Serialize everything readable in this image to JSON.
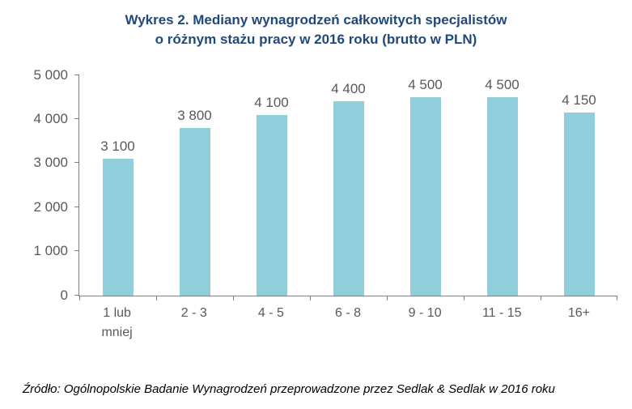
{
  "title": {
    "line1": "Wykres 2. Mediany wynagrodzeń całkowitych specjalistów",
    "line2": "o różnym stażu pracy w 2016 roku (brutto w PLN)"
  },
  "source": "Źródło: Ogólnopolskie Badanie Wynagrodzeń przeprowadzone przez Sedlak & Sedlak w 2016 roku",
  "chart_data": {
    "type": "bar",
    "title": "Wykres 2. Mediany wynagrodzeń całkowitych specjalistów o różnym stażu pracy w 2016 roku (brutto w PLN)",
    "categories": [
      "1 lub\nmniej",
      "2 - 3",
      "4 - 5",
      "6 - 8",
      "9 - 10",
      "11 - 15",
      "16+"
    ],
    "values": [
      3100,
      3800,
      4100,
      4400,
      4500,
      4500,
      4150
    ],
    "value_labels": [
      "3 100",
      "3 800",
      "4 100",
      "4 400",
      "4 500",
      "4 500",
      "4 150"
    ],
    "xlabel": "",
    "ylabel": "",
    "ylim": [
      0,
      5000
    ],
    "yticks": [
      0,
      1000,
      2000,
      3000,
      4000,
      5000
    ],
    "ytick_labels": [
      "0",
      "1 000",
      "2 000",
      "3 000",
      "4 000",
      "5 000"
    ],
    "grid": false,
    "legend": false,
    "bar_color": "#92CDDC",
    "axis_color": "#808080",
    "label_color": "#595959",
    "title_color": "#1F497D"
  }
}
